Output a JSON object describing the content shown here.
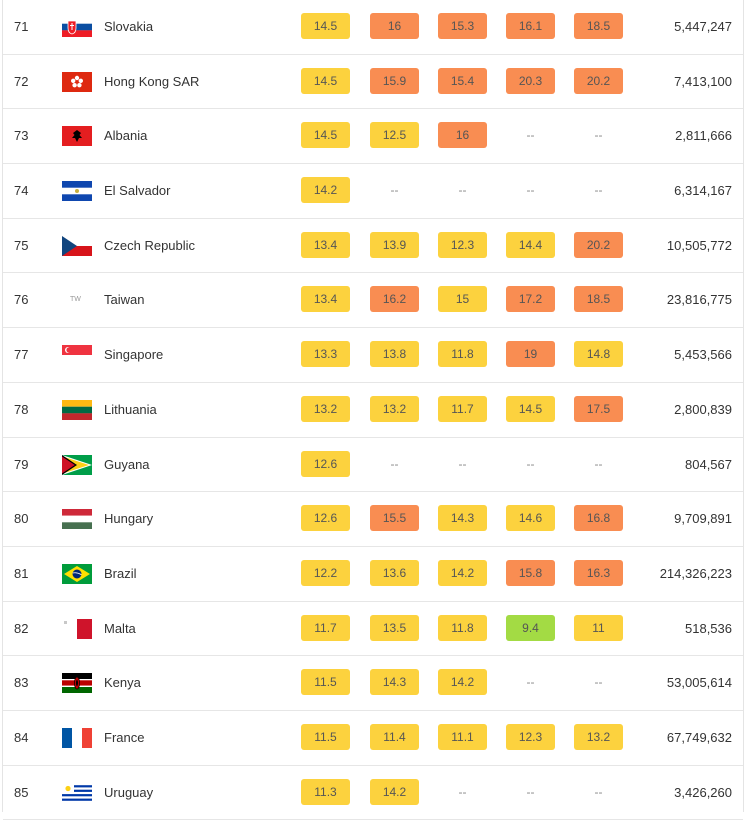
{
  "colors": {
    "yellow": "#fcd23e",
    "orange": "#f98d52",
    "green": "#a3db44",
    "dash": "#888888"
  },
  "rows": [
    {
      "rank": "71",
      "country": "Slovakia",
      "flag": "slovakia-flag-icon",
      "values": [
        "14.5",
        "16",
        "15.3",
        "16.1",
        "18.5"
      ],
      "levels": [
        "yellow",
        "orange",
        "orange",
        "orange",
        "orange"
      ],
      "population": "5,447,247"
    },
    {
      "rank": "72",
      "country": "Hong Kong SAR",
      "flag": "hong-kong-flag-icon",
      "values": [
        "14.5",
        "15.9",
        "15.4",
        "20.3",
        "20.2"
      ],
      "levels": [
        "yellow",
        "orange",
        "orange",
        "orange",
        "orange"
      ],
      "population": "7,413,100"
    },
    {
      "rank": "73",
      "country": "Albania",
      "flag": "albania-flag-icon",
      "values": [
        "14.5",
        "12.5",
        "16",
        "--",
        "--"
      ],
      "levels": [
        "yellow",
        "yellow",
        "orange",
        "dash",
        "dash"
      ],
      "population": "2,811,666"
    },
    {
      "rank": "74",
      "country": "El Salvador",
      "flag": "el-salvador-flag-icon",
      "values": [
        "14.2",
        "--",
        "--",
        "--",
        "--"
      ],
      "levels": [
        "yellow",
        "dash",
        "dash",
        "dash",
        "dash"
      ],
      "population": "6,314,167"
    },
    {
      "rank": "75",
      "country": "Czech Republic",
      "flag": "czech-flag-icon",
      "values": [
        "13.4",
        "13.9",
        "12.3",
        "14.4",
        "20.2"
      ],
      "levels": [
        "yellow",
        "yellow",
        "yellow",
        "yellow",
        "orange"
      ],
      "population": "10,505,772"
    },
    {
      "rank": "76",
      "country": "Taiwan",
      "flag": "taiwan-flag-icon",
      "flag_text": "TW",
      "values": [
        "13.4",
        "16.2",
        "15",
        "17.2",
        "18.5"
      ],
      "levels": [
        "yellow",
        "orange",
        "yellow",
        "orange",
        "orange"
      ],
      "population": "23,816,775"
    },
    {
      "rank": "77",
      "country": "Singapore",
      "flag": "singapore-flag-icon",
      "values": [
        "13.3",
        "13.8",
        "11.8",
        "19",
        "14.8"
      ],
      "levels": [
        "yellow",
        "yellow",
        "yellow",
        "orange",
        "yellow"
      ],
      "population": "5,453,566"
    },
    {
      "rank": "78",
      "country": "Lithuania",
      "flag": "lithuania-flag-icon",
      "values": [
        "13.2",
        "13.2",
        "11.7",
        "14.5",
        "17.5"
      ],
      "levels": [
        "yellow",
        "yellow",
        "yellow",
        "yellow",
        "orange"
      ],
      "population": "2,800,839"
    },
    {
      "rank": "79",
      "country": "Guyana",
      "flag": "guyana-flag-icon",
      "values": [
        "12.6",
        "--",
        "--",
        "--",
        "--"
      ],
      "levels": [
        "yellow",
        "dash",
        "dash",
        "dash",
        "dash"
      ],
      "population": "804,567"
    },
    {
      "rank": "80",
      "country": "Hungary",
      "flag": "hungary-flag-icon",
      "values": [
        "12.6",
        "15.5",
        "14.3",
        "14.6",
        "16.8"
      ],
      "levels": [
        "yellow",
        "orange",
        "yellow",
        "yellow",
        "orange"
      ],
      "population": "9,709,891"
    },
    {
      "rank": "81",
      "country": "Brazil",
      "flag": "brazil-flag-icon",
      "values": [
        "12.2",
        "13.6",
        "14.2",
        "15.8",
        "16.3"
      ],
      "levels": [
        "yellow",
        "yellow",
        "yellow",
        "orange",
        "orange"
      ],
      "population": "214,326,223"
    },
    {
      "rank": "82",
      "country": "Malta",
      "flag": "malta-flag-icon",
      "values": [
        "11.7",
        "13.5",
        "11.8",
        "9.4",
        "11"
      ],
      "levels": [
        "yellow",
        "yellow",
        "yellow",
        "green",
        "yellow"
      ],
      "population": "518,536"
    },
    {
      "rank": "83",
      "country": "Kenya",
      "flag": "kenya-flag-icon",
      "values": [
        "11.5",
        "14.3",
        "14.2",
        "--",
        "--"
      ],
      "levels": [
        "yellow",
        "yellow",
        "yellow",
        "dash",
        "dash"
      ],
      "population": "53,005,614"
    },
    {
      "rank": "84",
      "country": "France",
      "flag": "france-flag-icon",
      "values": [
        "11.5",
        "11.4",
        "11.1",
        "12.3",
        "13.2"
      ],
      "levels": [
        "yellow",
        "yellow",
        "yellow",
        "yellow",
        "yellow"
      ],
      "population": "67,749,632"
    },
    {
      "rank": "85",
      "country": "Uruguay",
      "flag": "uruguay-flag-icon",
      "values": [
        "11.3",
        "14.2",
        "--",
        "--",
        "--"
      ],
      "levels": [
        "yellow",
        "yellow",
        "dash",
        "dash",
        "dash"
      ],
      "population": "3,426,260"
    }
  ]
}
